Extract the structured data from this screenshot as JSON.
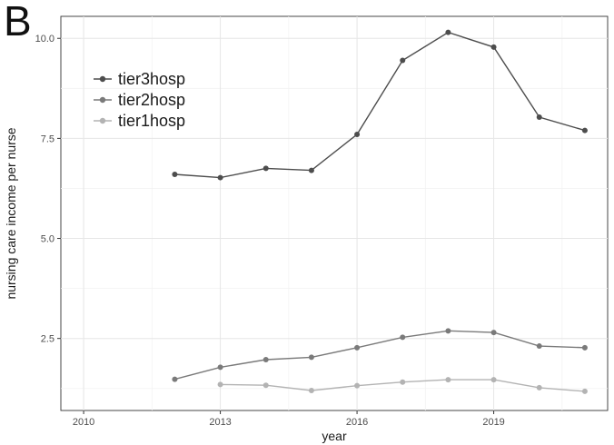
{
  "panel_label": "B",
  "chart_data": {
    "type": "line",
    "xlabel": "year",
    "ylabel": "nursing care income per nurse",
    "xlim": [
      2009.5,
      2021.5
    ],
    "ylim": [
      0.7,
      10.55
    ],
    "x_ticks": [
      2010,
      2013,
      2016,
      2019
    ],
    "x_tick_labels": [
      "2010",
      "2013",
      "2016",
      "2019"
    ],
    "y_ticks": [
      2.5,
      5.0,
      7.5,
      10.0
    ],
    "y_tick_labels": [
      "2.5",
      "5.0",
      "7.5",
      "10.0"
    ],
    "grid": true,
    "legend_position": "top-left",
    "series": [
      {
        "name": "tier3hosp",
        "color": "#4d4d4d",
        "x": [
          2012,
          2013,
          2014,
          2015,
          2016,
          2017,
          2018,
          2019,
          2020,
          2021
        ],
        "values": [
          6.6,
          6.52,
          6.75,
          6.7,
          7.6,
          9.45,
          10.15,
          9.78,
          8.03,
          7.7
        ]
      },
      {
        "name": "tier2hosp",
        "color": "#7a7a7a",
        "x": [
          2012,
          2013,
          2014,
          2015,
          2016,
          2017,
          2018,
          2019,
          2020,
          2021
        ],
        "values": [
          1.48,
          1.78,
          1.97,
          2.03,
          2.27,
          2.53,
          2.69,
          2.65,
          2.31,
          2.27
        ]
      },
      {
        "name": "tier1hosp",
        "color": "#b3b3b3",
        "x": [
          2013,
          2014,
          2015,
          2016,
          2017,
          2018,
          2019,
          2020,
          2021
        ],
        "values": [
          1.35,
          1.33,
          1.2,
          1.32,
          1.41,
          1.47,
          1.47,
          1.27,
          1.18
        ]
      }
    ]
  }
}
